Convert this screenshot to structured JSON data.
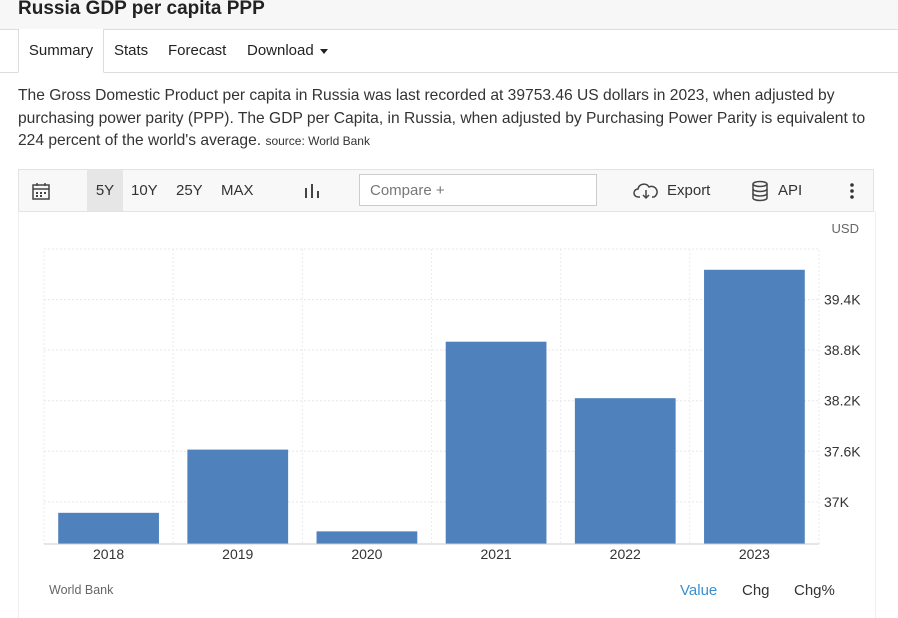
{
  "page": {
    "title": "Russia GDP per capita PPP"
  },
  "tabs": [
    {
      "label": "Summary",
      "active": true
    },
    {
      "label": "Stats"
    },
    {
      "label": "Forecast"
    },
    {
      "label": "Download"
    }
  ],
  "description": {
    "text": "The Gross Domestic Product per capita in Russia was last recorded at 39753.46 US dollars in 2023, when adjusted by purchasing power parity (PPP). The GDP per Capita, in Russia, when adjusted by Purchasing Power Parity is equivalent to 224 percent of the world's average.",
    "source": "source: World Bank"
  },
  "toolbar": {
    "calendar_icon": "calendar-icon",
    "ranges": [
      "5Y",
      "10Y",
      "25Y",
      "MAX"
    ],
    "active_range": "5Y",
    "chart_type_icon": "bar-chart-icon",
    "compare_placeholder": "Compare +",
    "export_label": "Export",
    "export_icon": "cloud-download-icon",
    "api_label": "API",
    "api_icon": "database-icon",
    "more_icon": "vertical-dots-icon"
  },
  "chart_data": {
    "type": "bar",
    "unit": "USD",
    "categories": [
      "2018",
      "2019",
      "2020",
      "2021",
      "2022",
      "2023"
    ],
    "values": [
      36870,
      37620,
      36650,
      38900,
      38230,
      39753.46
    ],
    "y_ticks": [
      37000,
      37600,
      38200,
      38800,
      39400
    ],
    "y_tick_labels": [
      "37K",
      "37.6K",
      "38.2K",
      "38.8K",
      "39.4K"
    ],
    "ylim": [
      36500,
      40000
    ],
    "grid": true,
    "bar_color": "#4f81bd"
  },
  "footer": {
    "source": "World Bank",
    "value_tabs": [
      "Value",
      "Chg",
      "Chg%"
    ],
    "active_value_tab": "Value"
  }
}
